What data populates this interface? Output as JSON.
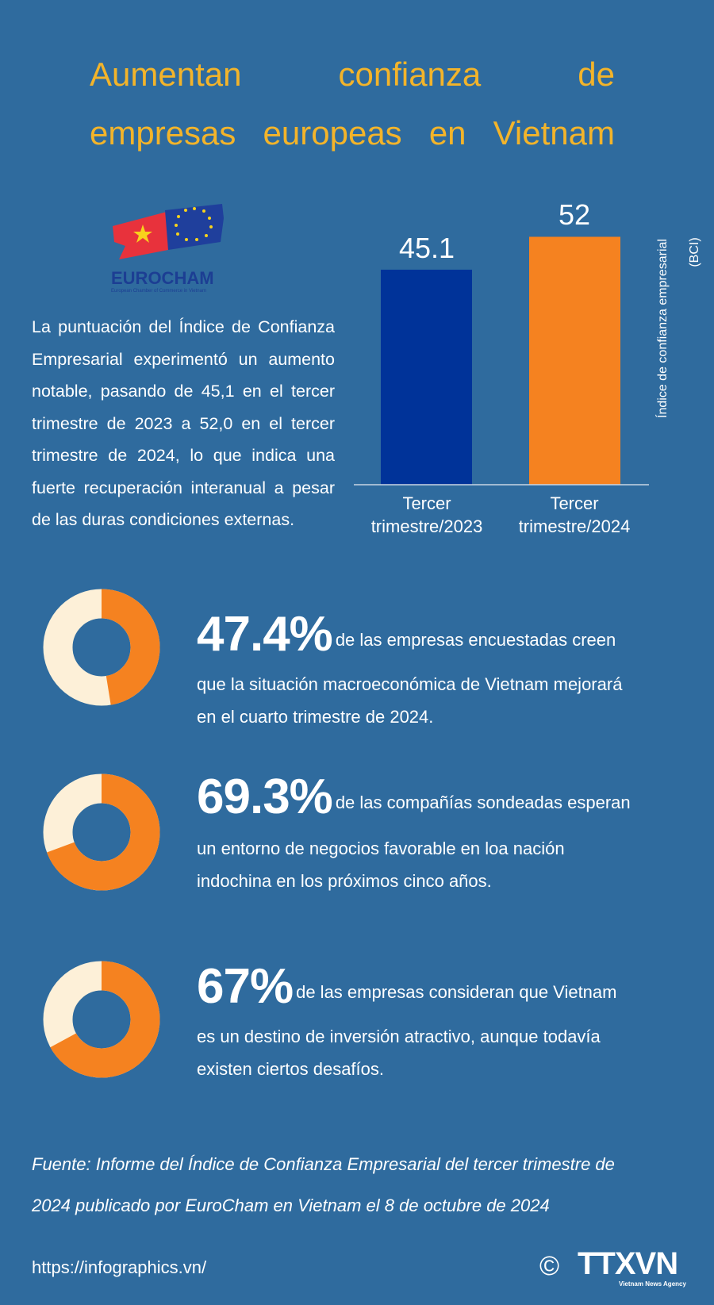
{
  "title": {
    "line1": "Aumentan confianza de",
    "line2": "empresas europeas en Vietnam"
  },
  "logo": {
    "name": "EUROCHAM",
    "subtitle": "European Chamber of Commerce in Vietnam"
  },
  "paragraph": "La puntuación del Índice de Confianza Empresarial experimentó un aumento notable, pasando de 45,1 en el tercer trimestre de 2023 a 52,0 en el tercer trimestre de 2024, lo que indica una fuerte recuperación interanual a pesar de las duras condiciones externas.",
  "colors": {
    "background": "#2f6b9e",
    "title": "#f3b42a",
    "bar2023": "#003399",
    "bar2024": "#f58220",
    "donut_fill": "#f58220",
    "donut_rest": "#fdf0d8"
  },
  "chart_data": [
    {
      "type": "bar",
      "categories": [
        "Tercer trimestre/2023",
        "Tercer trimestre/2024"
      ],
      "category_lines": [
        [
          "Tercer",
          "trimestre/2023"
        ],
        [
          "Tercer",
          "trimestre/2024"
        ]
      ],
      "values": [
        45.1,
        52
      ],
      "value_labels": [
        "45.1",
        "52"
      ],
      "ylabel": "Índice de confianza empresarial",
      "ylabel2": "(BCI)",
      "ylim": [
        0,
        60
      ],
      "grid": false
    },
    {
      "type": "pie",
      "variant": "donut",
      "values": [
        47.4,
        52.6
      ]
    },
    {
      "type": "pie",
      "variant": "donut",
      "values": [
        69.3,
        30.7
      ]
    },
    {
      "type": "pie",
      "variant": "donut",
      "values": [
        67,
        33
      ]
    }
  ],
  "stats": [
    {
      "value": "47.4%",
      "line1": "de las empresas encuestadas creen",
      "line2": "que la situación macroeconómica de Vietnam mejorará",
      "line3": "en el cuarto trimestre de 2024."
    },
    {
      "value": "69.3%",
      "line1": "de las compañías sondeadas esperan",
      "line2": "un entorno de negocios favorable en loa nación",
      "line3": "indochina en los próximos cinco años."
    },
    {
      "value": "67%",
      "line1": "de las empresas consideran que Vietnam",
      "line2": "es un destino de inversión atractivo, aunque todavía",
      "line3": "existen ciertos desafíos."
    }
  ],
  "source": {
    "line1": "Fuente: Informe del Índice de Confianza Empresarial del tercer trimestre de",
    "line2": "2024 publicado por EuroCham en Vietnam el 8 de octubre de 2024"
  },
  "footer": {
    "url": "https://infographics.vn/",
    "copyright": "©",
    "agency": "TTXVN",
    "agency_sub": "Vietnam News Agency"
  }
}
